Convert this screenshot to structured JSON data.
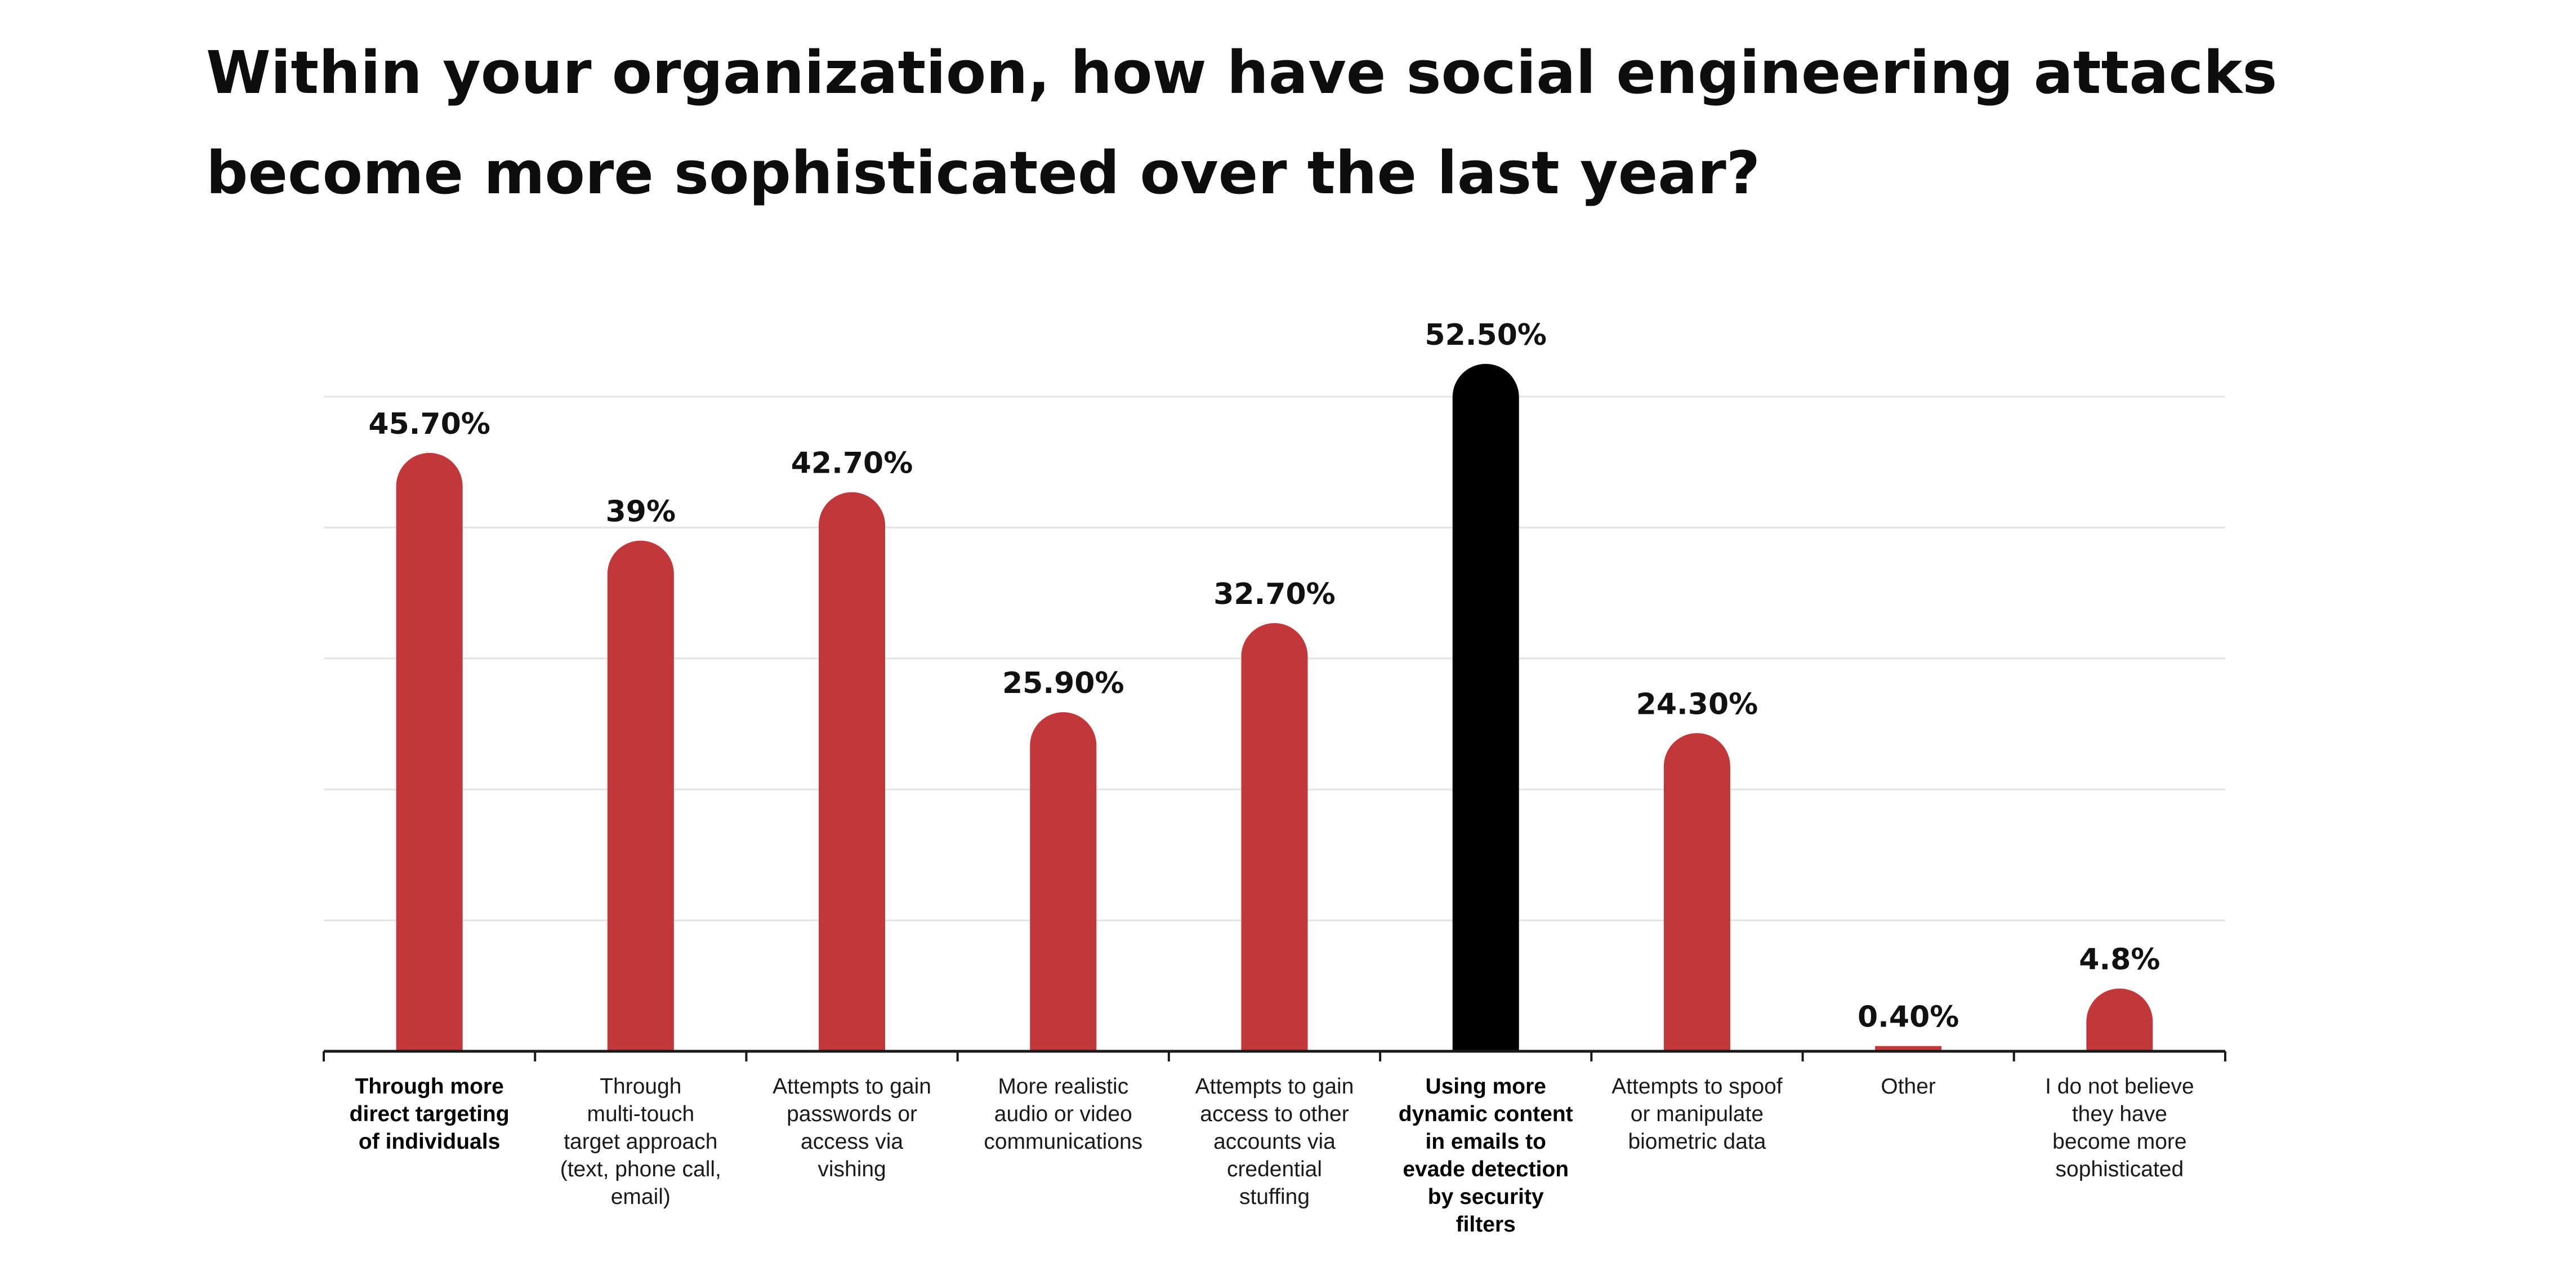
{
  "chart_data": {
    "type": "bar",
    "title": "Within your organization, how have social engineering attacks become more sophisticated over the last year?",
    "categories": [
      "Through more\ndirect targeting\nof individuals",
      "Through\nmulti-touch\ntarget approach\n(text, phone call,\nemail)",
      "Attempts to gain\npasswords or\naccess via\nvishing",
      "More realistic\naudio or video\ncommunications",
      "Attempts to gain\naccess to other\naccounts via\ncredential\nstuffing",
      "Using more\ndynamic content\nin emails to\nevade detection\nby security\nfilters",
      "Attempts to spoof\nor manipulate\nbiometric data",
      "Other",
      "I do not believe\nthey have\nbecome more\nsophisticated"
    ],
    "values": [
      45.7,
      39,
      42.7,
      25.9,
      32.7,
      52.5,
      24.3,
      0.4,
      4.8
    ],
    "value_labels": [
      "45.70%",
      "39%",
      "42.70%",
      "25.90%",
      "32.70%",
      "52.50%",
      "24.30%",
      "0.40%",
      "4.8%"
    ],
    "bold_categories": [
      0,
      5
    ],
    "highlight_index": 5,
    "colors": {
      "bar": "#c1373a",
      "highlight": "#000000",
      "grid": "#e3e3e3",
      "axis": "#1a1a1a"
    },
    "ylim": [
      0,
      50
    ],
    "grid": true,
    "xlabel": "",
    "ylabel": ""
  }
}
